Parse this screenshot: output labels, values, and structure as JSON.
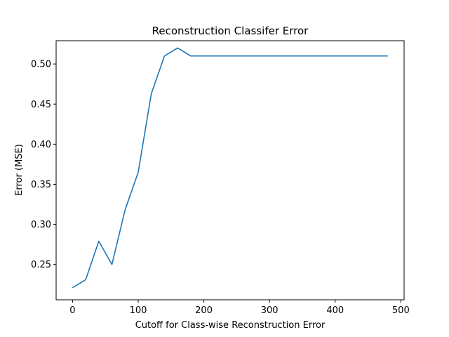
{
  "chart_data": {
    "type": "line",
    "title": "Reconstruction Classifer Error",
    "xlabel": "Cutoff for Class-wise Reconstruction Error",
    "ylabel": "Error (MSE)",
    "xlim": [
      -25,
      505
    ],
    "ylim": [
      0.206,
      0.529
    ],
    "xticks": [
      0,
      100,
      200,
      300,
      400,
      500
    ],
    "xtick_labels": [
      "0",
      "100",
      "200",
      "300",
      "400",
      "500"
    ],
    "yticks": [
      0.25,
      0.3,
      0.35,
      0.4,
      0.45,
      0.5
    ],
    "ytick_labels": [
      "0.25",
      "0.30",
      "0.35",
      "0.40",
      "0.45",
      "0.50"
    ],
    "grid": false,
    "series": [
      {
        "color": "#1f77b4",
        "x": [
          0,
          20,
          40,
          60,
          80,
          100,
          120,
          140,
          160,
          180,
          200,
          220,
          240,
          260,
          280,
          300,
          320,
          340,
          360,
          380,
          400,
          420,
          440,
          460,
          480
        ],
        "y": [
          0.221,
          0.231,
          0.279,
          0.25,
          0.318,
          0.365,
          0.463,
          0.51,
          0.52,
          0.51,
          0.51,
          0.51,
          0.51,
          0.51,
          0.51,
          0.51,
          0.51,
          0.51,
          0.51,
          0.51,
          0.51,
          0.51,
          0.51,
          0.51,
          0.51
        ]
      }
    ]
  }
}
